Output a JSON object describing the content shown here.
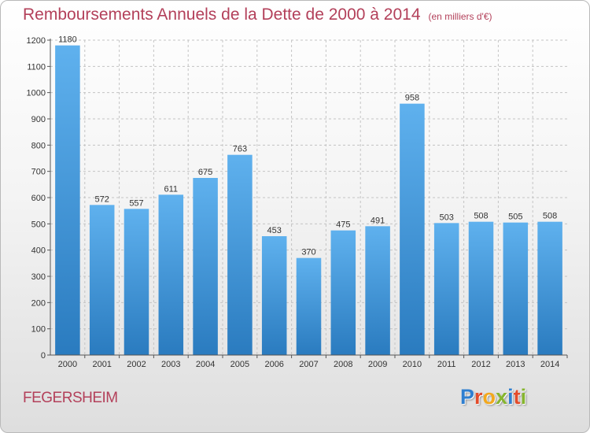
{
  "header": {
    "title": "Remboursements Annuels de la Dette de 2000 à 2014",
    "subtitle": "(en milliers d'€)"
  },
  "footer": {
    "city": "FEGERSHEIM",
    "logo_letters": [
      "P",
      "r",
      "o",
      "x",
      "i",
      "t",
      "i"
    ]
  },
  "colors": {
    "title": "#b3405a",
    "bar_top": "#5fb1ee",
    "bar_bottom": "#2a7bbf",
    "logo": [
      "#2f7fd0",
      "#e34b2a",
      "#f2a81d",
      "#86b52f",
      "#2f7fd0",
      "#e34b2a",
      "#86b52f"
    ]
  },
  "chart_data": {
    "type": "bar",
    "title": "Remboursements Annuels de la Dette de 2000 à 2014",
    "subtitle": "(en milliers d'€)",
    "xlabel": "",
    "ylabel": "",
    "categories": [
      "2000",
      "2001",
      "2002",
      "2003",
      "2004",
      "2005",
      "2006",
      "2007",
      "2008",
      "2009",
      "2010",
      "2011",
      "2012",
      "2013",
      "2014"
    ],
    "values": [
      1180,
      572,
      557,
      611,
      675,
      763,
      453,
      370,
      475,
      491,
      958,
      503,
      508,
      505,
      508
    ],
    "ylim": [
      0,
      1200
    ],
    "yticks": [
      0,
      100,
      200,
      300,
      400,
      500,
      600,
      700,
      800,
      900,
      1000,
      1100,
      1200
    ],
    "grid": true
  }
}
